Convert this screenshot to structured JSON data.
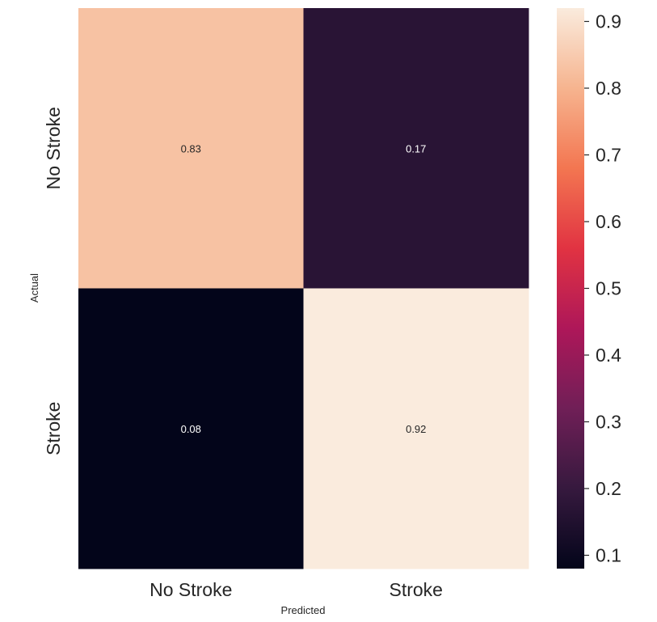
{
  "chart_data": {
    "type": "heatmap",
    "title": "",
    "xlabel": "Predicted",
    "ylabel": "Actual",
    "x_categories": [
      "No Stroke",
      "Stroke"
    ],
    "y_categories": [
      "No Stroke",
      "Stroke"
    ],
    "values": [
      [
        0.83,
        0.17
      ],
      [
        0.08,
        0.92
      ]
    ],
    "cell_labels": [
      [
        "0.83",
        "0.17"
      ],
      [
        "0.08",
        "0.92"
      ]
    ],
    "colorbar": {
      "min": 0.08,
      "max": 0.92,
      "ticks": [
        0.1,
        0.2,
        0.3,
        0.4,
        0.5,
        0.6,
        0.7,
        0.8,
        0.9
      ],
      "tick_labels": [
        "0.1",
        "0.2",
        "0.3",
        "0.4",
        "0.5",
        "0.6",
        "0.7",
        "0.8",
        "0.9"
      ],
      "colormap": "rocket",
      "colormap_stops": [
        "#03051a",
        "#36193e",
        "#701f57",
        "#ae1759",
        "#e13342",
        "#f37651",
        "#f6b48f",
        "#faebdd"
      ]
    },
    "grid": false,
    "legend": "colorbar-right"
  }
}
